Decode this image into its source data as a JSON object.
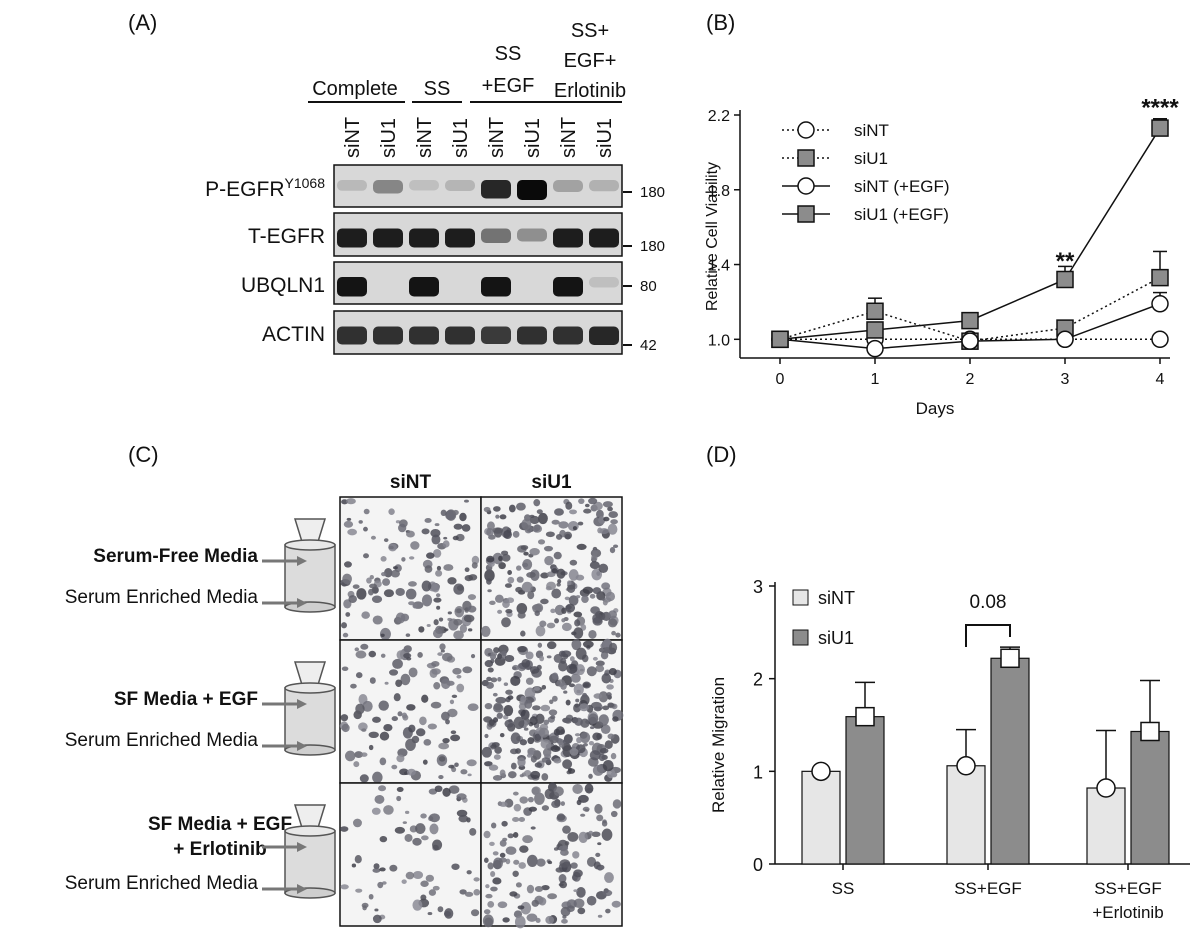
{
  "panels": {
    "a": {
      "label": "(A)"
    },
    "b": {
      "label": "(B)"
    },
    "c": {
      "label": "(C)"
    },
    "d": {
      "label": "(D)"
    }
  },
  "western_blot": {
    "groups": [
      {
        "label_lines": [
          "Complete"
        ]
      },
      {
        "label_lines": [
          "SS"
        ]
      },
      {
        "label_lines": [
          "SS",
          "+EGF"
        ]
      },
      {
        "label_lines": [
          "SS+",
          "EGF+",
          "Erlotinib"
        ]
      }
    ],
    "lanes": [
      "siNT",
      "siU1",
      "siNT",
      "siU1",
      "siNT",
      "siU1",
      "siNT",
      "siU1"
    ],
    "rows": [
      {
        "name": "P-EGFR",
        "superscript": "Y1068",
        "mw": "180",
        "band_intensity": [
          0.08,
          0.35,
          0.05,
          0.1,
          0.85,
          1.0,
          0.2,
          0.12
        ]
      },
      {
        "name": "T-EGFR",
        "superscript": "",
        "mw": "180",
        "band_intensity": [
          0.9,
          0.9,
          0.9,
          0.9,
          0.45,
          0.3,
          0.9,
          0.9
        ]
      },
      {
        "name": "UBQLN1",
        "superscript": "",
        "mw": "80",
        "band_intensity": [
          0.95,
          0.0,
          0.95,
          0.0,
          0.95,
          0.0,
          0.95,
          0.05
        ]
      },
      {
        "name": "ACTIN",
        "superscript": "",
        "mw": "42",
        "band_intensity": [
          0.8,
          0.8,
          0.8,
          0.8,
          0.75,
          0.8,
          0.8,
          0.85
        ]
      }
    ]
  },
  "chart_data": [
    {
      "type": "line",
      "xlabel": "Days",
      "ylabel": "Relative Cell Viability",
      "x": [
        0,
        1,
        2,
        3,
        4
      ],
      "xticks": [
        "0",
        "1",
        "2",
        "3",
        "4"
      ],
      "ylim": [
        0.9,
        2.2
      ],
      "yticks": [
        "1.0",
        "1.4",
        "1.8",
        "2.2"
      ],
      "legend_position": "top-left",
      "series": [
        {
          "name": "siNT",
          "line": "dotted",
          "marker": "circle",
          "fill": "#ffffff",
          "values": [
            1.0,
            1.0,
            1.0,
            1.0,
            1.0
          ],
          "err": [
            0,
            0,
            0,
            0,
            0
          ]
        },
        {
          "name": "siU1",
          "line": "dotted",
          "marker": "square",
          "fill": "#8c8c8c",
          "values": [
            1.0,
            1.15,
            0.99,
            1.06,
            1.33
          ],
          "err": [
            0,
            0.07,
            0,
            0.04,
            0.14
          ]
        },
        {
          "name": "siNT (+EGF)",
          "line": "solid",
          "marker": "circle",
          "fill": "#ffffff",
          "values": [
            1.0,
            0.95,
            0.99,
            1.0,
            1.19
          ],
          "err": [
            0,
            0,
            0,
            0,
            0.06
          ]
        },
        {
          "name": "siU1 (+EGF)",
          "line": "solid",
          "marker": "square",
          "fill": "#8c8c8c",
          "values": [
            1.0,
            1.05,
            1.1,
            1.32,
            2.13
          ],
          "err": [
            0,
            0,
            0,
            0.07,
            0.05
          ]
        }
      ],
      "annotations": [
        {
          "text": "**",
          "x": 3,
          "y": 1.42
        },
        {
          "text": "****",
          "x": 4,
          "y": 2.24
        }
      ]
    },
    {
      "type": "bar",
      "ylabel": "Relative Migration",
      "categories": [
        [
          "SS"
        ],
        [
          "SS+EGF"
        ],
        [
          "SS+EGF",
          "+Erlotinib"
        ]
      ],
      "ylim": [
        0,
        3
      ],
      "yticks": [
        "0",
        "1",
        "2",
        "3"
      ],
      "legend_position": "top-left",
      "series": [
        {
          "name": "siNT",
          "color": "#e6e6e6",
          "values": [
            1.0,
            1.06,
            0.82
          ],
          "err": [
            0,
            0.39,
            0.62
          ],
          "point": [
            1.0,
            1.06,
            0.82
          ]
        },
        {
          "name": "siU1",
          "color": "#8c8c8c",
          "values": [
            1.59,
            2.22,
            1.43
          ],
          "err": [
            0.37,
            0.12,
            0.55
          ],
          "point": [
            1.59,
            2.22,
            1.43
          ]
        }
      ],
      "annotations": [
        {
          "text": "0.08",
          "between": "SS+EGF"
        }
      ]
    }
  ],
  "migration_images": {
    "col_headers": [
      "siNT",
      "siU1"
    ],
    "rows": [
      {
        "top_label_lines": [
          "Serum-Free Media"
        ],
        "bottom_label": "Serum Enriched Media",
        "cell_density": [
          0.35,
          0.6
        ]
      },
      {
        "top_label_lines": [
          "SF Media + EGF"
        ],
        "bottom_label": "Serum Enriched Media",
        "cell_density": [
          0.25,
          1.0
        ]
      },
      {
        "top_label_lines": [
          "SF Media + EGF",
          "+ Erlotinib"
        ],
        "bottom_label": "Serum Enriched Media",
        "cell_density": [
          0.12,
          0.4
        ]
      }
    ]
  }
}
